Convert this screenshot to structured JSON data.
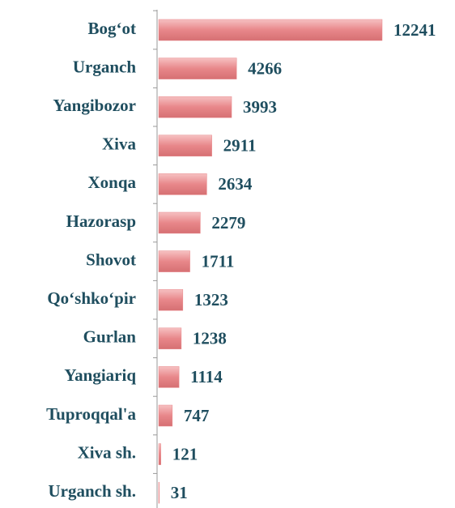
{
  "chart_data": {
    "type": "bar",
    "orientation": "horizontal",
    "categories": [
      "Bog‘ot",
      "Urganch",
      "Yangibozor",
      "Xiva",
      "Xonqa",
      "Hazorasp",
      "Shovot",
      "Qo‘shko‘pir",
      "Gurlan",
      "Yangiariq",
      "Tuproqqal'a",
      "Xiva sh.",
      "Urganch sh."
    ],
    "values": [
      12241,
      4266,
      3993,
      2911,
      2634,
      2279,
      1711,
      1323,
      1238,
      1114,
      747,
      121,
      31
    ],
    "color": "#e8878a"
  }
}
